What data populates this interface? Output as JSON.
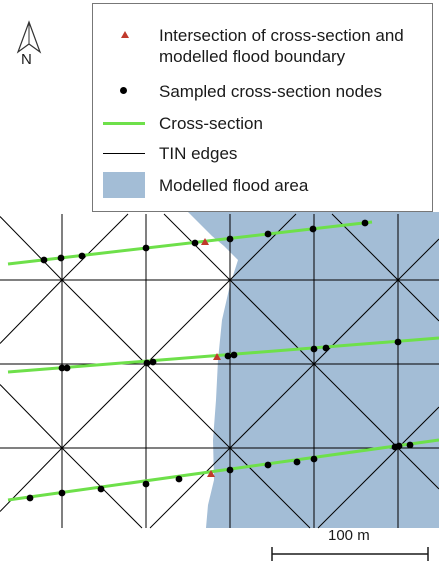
{
  "map": {
    "north_label": "N",
    "scale_label": "100 m",
    "colors": {
      "flood_area": "#a3bdd6",
      "cross_section": "#6ee04a",
      "tin_edges": "#000000",
      "nodes": "#000000",
      "intersection": "#c0392b"
    }
  },
  "legend": {
    "items": [
      {
        "symbol": "red-triangle",
        "line1": "Intersection of cross-section and",
        "line2": "modelled flood boundary"
      },
      {
        "symbol": "black-dot",
        "label": "Sampled cross-section nodes"
      },
      {
        "symbol": "green-line",
        "label": "Cross-section"
      },
      {
        "symbol": "black-line",
        "label": "TIN edges"
      },
      {
        "symbol": "blue-fill",
        "label": "Modelled flood area"
      }
    ]
  }
}
